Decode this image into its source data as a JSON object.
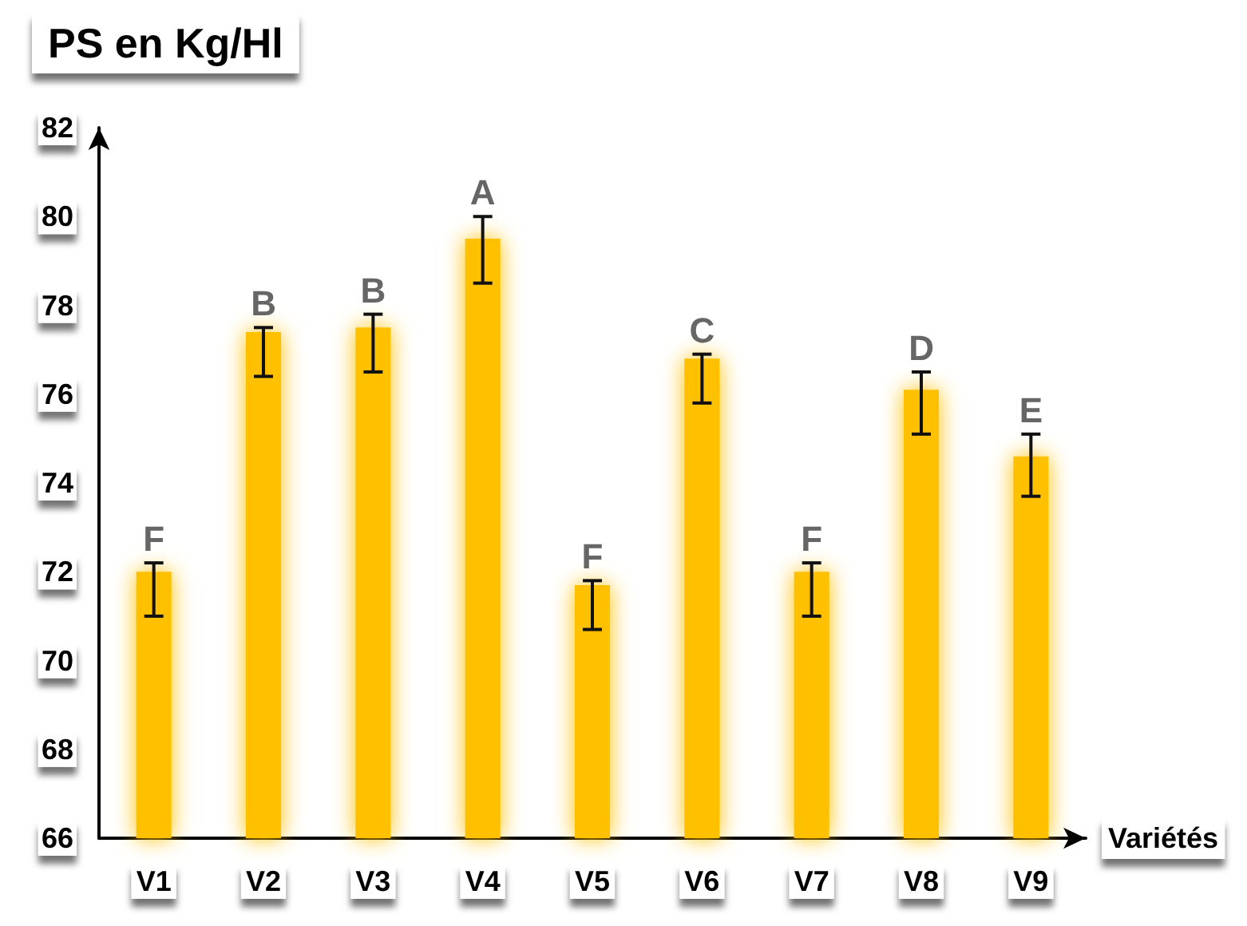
{
  "chart_data": {
    "type": "bar",
    "title": "PS en Kg/Hl",
    "xlabel": "Variétés",
    "categories": [
      "V1",
      "V2",
      "V3",
      "V4",
      "V5",
      "V6",
      "V7",
      "V8",
      "V9"
    ],
    "values": [
      72.0,
      77.4,
      77.5,
      79.5,
      71.7,
      76.8,
      72.0,
      76.1,
      74.6
    ],
    "errors": [
      [
        71.0,
        72.2
      ],
      [
        76.4,
        77.5
      ],
      [
        76.5,
        77.8
      ],
      [
        78.5,
        80.0
      ],
      [
        70.7,
        71.8
      ],
      [
        75.8,
        76.9
      ],
      [
        71.0,
        72.2
      ],
      [
        75.1,
        76.5
      ],
      [
        73.7,
        75.1
      ]
    ],
    "value_labels": [
      "F",
      "B",
      "B",
      "A",
      "F",
      "C",
      "F",
      "D",
      "E"
    ],
    "color": "#ffc000",
    "ylim": [
      66,
      82
    ],
    "yticks": [
      66,
      68,
      70,
      72,
      74,
      76,
      78,
      80,
      82
    ],
    "grid": false
  }
}
